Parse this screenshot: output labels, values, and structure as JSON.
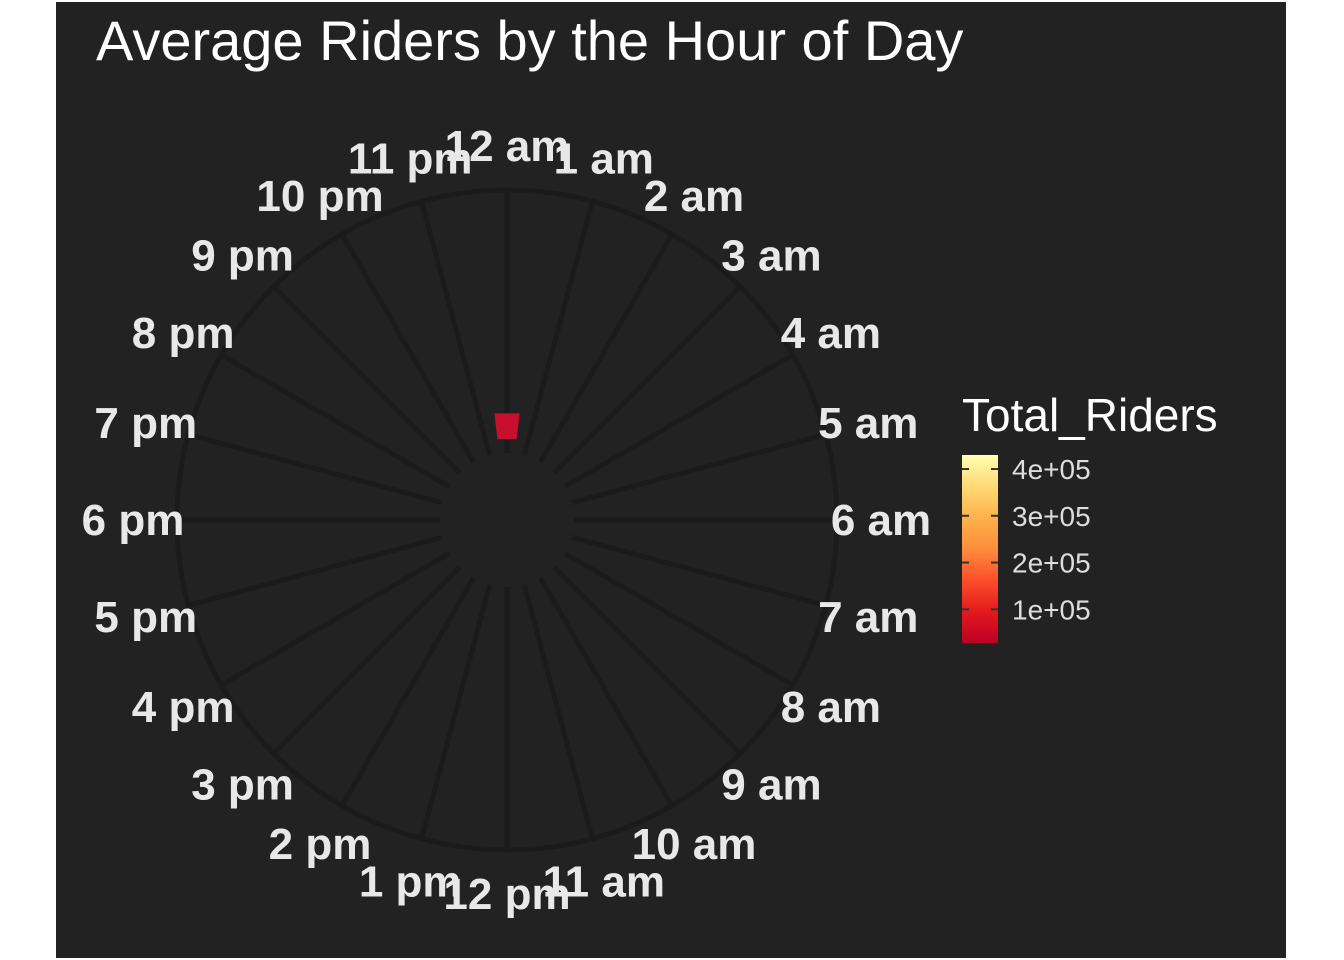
{
  "chart_data": {
    "type": "bar",
    "coordinate_system": "polar",
    "title": "Average Riders by the Hour of Day",
    "categories": [
      "12 am",
      "1 am",
      "2 am",
      "3 am",
      "4 am",
      "5 am",
      "6 am",
      "7 am",
      "8 am",
      "9 am",
      "10 am",
      "11 am",
      "12 pm",
      "1 pm",
      "2 pm",
      "3 pm",
      "4 pm",
      "5 pm",
      "6 pm",
      "7 pm",
      "8 pm",
      "9 pm",
      "10 pm",
      "11 pm"
    ],
    "values": [
      28000,
      0,
      0,
      0,
      0,
      0,
      0,
      0,
      0,
      0,
      0,
      0,
      0,
      0,
      0,
      0,
      0,
      0,
      0,
      0,
      0,
      0,
      0,
      0
    ],
    "rlim": [
      0,
      400000
    ],
    "legend": {
      "title": "Total_Riders",
      "placement": "right",
      "ticks": [
        100000,
        200000,
        300000,
        400000
      ],
      "tick_labels": [
        "1e+05",
        "2e+05",
        "3e+05",
        "4e+05"
      ],
      "colors": [
        "#bd0026",
        "#e31a1c",
        "#fc4e2a",
        "#fd8d3c",
        "#feb24c",
        "#fed976",
        "#ffffb2"
      ],
      "range": [
        28000,
        430000
      ]
    },
    "grid": true,
    "background": "#222222",
    "grid_color": "#1b1b1b",
    "bar_color": "#c8102e"
  }
}
